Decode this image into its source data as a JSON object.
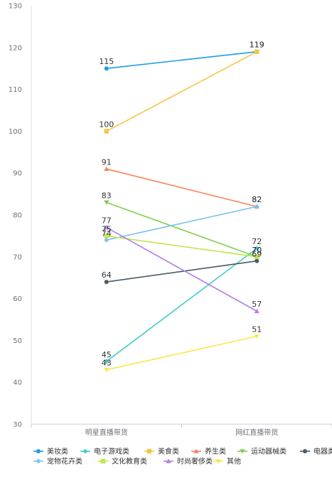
{
  "chart_data": {
    "type": "line",
    "title": "",
    "xlabel": "",
    "ylabel": "",
    "categories": [
      "明星直播带货",
      "网红直播带货"
    ],
    "ylim": [
      30,
      130
    ],
    "yticks": [
      30,
      40,
      50,
      60,
      70,
      80,
      90,
      100,
      110,
      120,
      130
    ],
    "grid": false,
    "legend_position": "bottom",
    "series": [
      {
        "name": "美妆类",
        "values": [
          115,
          119
        ],
        "color": "#1e9be6",
        "marker": "circle"
      },
      {
        "name": "电子游戏类",
        "values": [
          45,
          72
        ],
        "color": "#44cccc",
        "marker": "diamond"
      },
      {
        "name": "美食类",
        "values": [
          100,
          119
        ],
        "color": "#f8c542",
        "marker": "square"
      },
      {
        "name": "养生类",
        "values": [
          91,
          82
        ],
        "color": "#f5855c",
        "marker": "triangle"
      },
      {
        "name": "运动器械类",
        "values": [
          83,
          70
        ],
        "color": "#7ed04e",
        "marker": "triangle-down"
      },
      {
        "name": "电器类",
        "values": [
          64,
          69
        ],
        "color": "#4b5b66",
        "marker": "circle"
      },
      {
        "name": "宠物花卉类",
        "values": [
          74,
          82
        ],
        "color": "#77c3ee",
        "marker": "diamond"
      },
      {
        "name": "文化教育类",
        "values": [
          75,
          70
        ],
        "color": "#bfe74a",
        "marker": "square"
      },
      {
        "name": "时尚奢侈类",
        "values": [
          77,
          57
        ],
        "color": "#b07ee8",
        "marker": "triangle"
      },
      {
        "name": "其他",
        "values": [
          43,
          51
        ],
        "color": "#f7e84a",
        "marker": "triangle-down"
      }
    ]
  }
}
